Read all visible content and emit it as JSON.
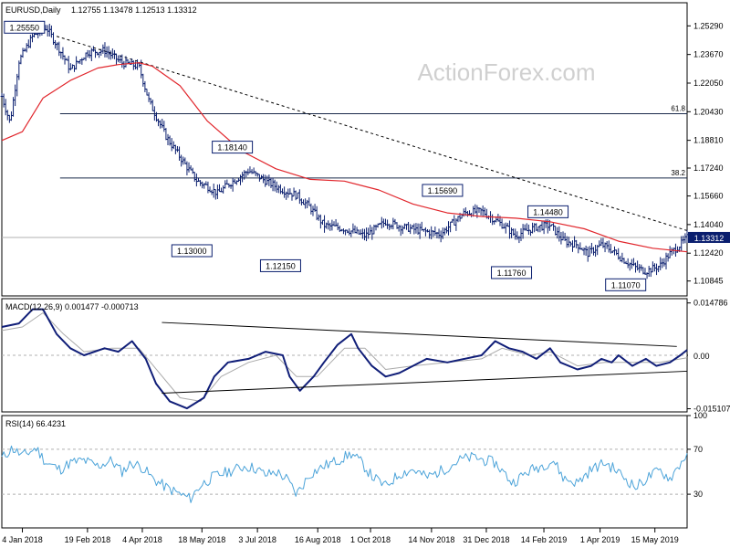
{
  "chart_data": [
    {
      "panel": "price",
      "type": "ohlc",
      "title": "EURUSD,Daily",
      "ohlc_readout": "1.12755 1.13478 1.12513 1.13312",
      "watermark": "ActionForex.com",
      "ylim": [
        1.1,
        1.266
      ],
      "yticks": [
        "1.25290",
        "1.23670",
        "1.22050",
        "1.20430",
        "1.18810",
        "1.17240",
        "1.15660",
        "1.14040",
        "1.12420",
        "1.10845"
      ],
      "current_price": "1.13312",
      "fib_levels": [
        {
          "label": "61.8",
          "value": 1.2032
        },
        {
          "label": "38.2",
          "value": 1.1668
        }
      ],
      "swing_labels": [
        {
          "text": "1.25550",
          "t": 0.065,
          "value": 1.2555
        },
        {
          "text": "1.13000",
          "t": 0.312,
          "value": 1.13
        },
        {
          "text": "1.18140",
          "t": 0.363,
          "value": 1.1814
        },
        {
          "text": "1.12150",
          "t": 0.452,
          "value": 1.1215
        },
        {
          "text": "1.15690",
          "t": 0.675,
          "value": 1.1569
        },
        {
          "text": "1.11760",
          "t": 0.773,
          "value": 1.1176
        },
        {
          "text": "1.14480",
          "t": 0.805,
          "value": 1.1448
        },
        {
          "text": "1.11070",
          "t": 0.937,
          "value": 1.1107
        }
      ],
      "close_path": [
        [
          0.0,
          1.213
        ],
        [
          0.012,
          1.198
        ],
        [
          0.025,
          1.233
        ],
        [
          0.045,
          1.247
        ],
        [
          0.065,
          1.252
        ],
        [
          0.085,
          1.239
        ],
        [
          0.1,
          1.228
        ],
        [
          0.125,
          1.238
        ],
        [
          0.15,
          1.239
        ],
        [
          0.175,
          1.232
        ],
        [
          0.2,
          1.23
        ],
        [
          0.215,
          1.21
        ],
        [
          0.24,
          1.19
        ],
        [
          0.27,
          1.173
        ],
        [
          0.285,
          1.165
        ],
        [
          0.3,
          1.162
        ],
        [
          0.315,
          1.158
        ],
        [
          0.33,
          1.163
        ],
        [
          0.345,
          1.167
        ],
        [
          0.36,
          1.171
        ],
        [
          0.385,
          1.165
        ],
        [
          0.41,
          1.16
        ],
        [
          0.43,
          1.157
        ],
        [
          0.45,
          1.15
        ],
        [
          0.47,
          1.14
        ],
        [
          0.5,
          1.138
        ],
        [
          0.53,
          1.134
        ],
        [
          0.56,
          1.142
        ],
        [
          0.585,
          1.139
        ],
        [
          0.61,
          1.137
        ],
        [
          0.64,
          1.135
        ],
        [
          0.66,
          1.142
        ],
        [
          0.675,
          1.147
        ],
        [
          0.7,
          1.148
        ],
        [
          0.72,
          1.143
        ],
        [
          0.735,
          1.139
        ],
        [
          0.75,
          1.134
        ],
        [
          0.76,
          1.136
        ],
        [
          0.78,
          1.139
        ],
        [
          0.8,
          1.14
        ],
        [
          0.82,
          1.131
        ],
        [
          0.84,
          1.129
        ],
        [
          0.855,
          1.124
        ],
        [
          0.875,
          1.129
        ],
        [
          0.89,
          1.126
        ],
        [
          0.905,
          1.121
        ],
        [
          0.925,
          1.116
        ],
        [
          0.94,
          1.114
        ],
        [
          0.96,
          1.117
        ],
        [
          0.975,
          1.124
        ],
        [
          0.99,
          1.129
        ],
        [
          1.0,
          1.133
        ]
      ],
      "ma_path": [
        [
          0.0,
          1.188
        ],
        [
          0.03,
          1.193
        ],
        [
          0.06,
          1.212
        ],
        [
          0.1,
          1.222
        ],
        [
          0.14,
          1.229
        ],
        [
          0.17,
          1.231
        ],
        [
          0.2,
          1.232
        ],
        [
          0.22,
          1.23
        ],
        [
          0.26,
          1.219
        ],
        [
          0.3,
          1.199
        ],
        [
          0.35,
          1.182
        ],
        [
          0.4,
          1.172
        ],
        [
          0.45,
          1.166
        ],
        [
          0.5,
          1.165
        ],
        [
          0.55,
          1.16
        ],
        [
          0.6,
          1.152
        ],
        [
          0.65,
          1.147
        ],
        [
          0.7,
          1.145
        ],
        [
          0.75,
          1.144
        ],
        [
          0.8,
          1.142
        ],
        [
          0.85,
          1.138
        ],
        [
          0.9,
          1.131
        ],
        [
          0.95,
          1.127
        ],
        [
          1.0,
          1.125
        ]
      ],
      "trendline": {
        "from": [
          0.08,
          1.247
        ],
        "to": [
          1.0,
          1.137
        ]
      }
    },
    {
      "panel": "macd",
      "type": "line",
      "title": "MACD(12,26,9) 0.001477 -0.000713",
      "ylim": [
        -0.016,
        0.016
      ],
      "yticks": [
        "0.014786",
        "0.00",
        "-0.015107"
      ],
      "current_label": "0.00",
      "macd_path": [
        [
          0.0,
          0.008
        ],
        [
          0.025,
          0.009
        ],
        [
          0.045,
          0.013
        ],
        [
          0.06,
          0.013
        ],
        [
          0.08,
          0.006
        ],
        [
          0.1,
          0.002
        ],
        [
          0.12,
          0.0
        ],
        [
          0.15,
          0.002
        ],
        [
          0.17,
          0.001
        ],
        [
          0.19,
          0.004
        ],
        [
          0.21,
          -0.001
        ],
        [
          0.225,
          -0.008
        ],
        [
          0.245,
          -0.013
        ],
        [
          0.27,
          -0.015
        ],
        [
          0.295,
          -0.012
        ],
        [
          0.31,
          -0.006
        ],
        [
          0.33,
          -0.002
        ],
        [
          0.36,
          -0.001
        ],
        [
          0.385,
          0.001
        ],
        [
          0.41,
          0.0
        ],
        [
          0.42,
          -0.006
        ],
        [
          0.435,
          -0.01
        ],
        [
          0.455,
          -0.006
        ],
        [
          0.47,
          -0.002
        ],
        [
          0.49,
          0.003
        ],
        [
          0.51,
          0.006
        ],
        [
          0.52,
          0.002
        ],
        [
          0.54,
          -0.003
        ],
        [
          0.56,
          -0.006
        ],
        [
          0.58,
          -0.005
        ],
        [
          0.6,
          -0.003
        ],
        [
          0.62,
          -0.001
        ],
        [
          0.65,
          -0.002
        ],
        [
          0.7,
          0.0
        ],
        [
          0.72,
          0.004
        ],
        [
          0.74,
          0.002
        ],
        [
          0.76,
          0.001
        ],
        [
          0.78,
          -0.001
        ],
        [
          0.8,
          0.002
        ],
        [
          0.815,
          -0.002
        ],
        [
          0.84,
          -0.004
        ],
        [
          0.86,
          -0.003
        ],
        [
          0.875,
          -0.001
        ],
        [
          0.89,
          -0.002
        ],
        [
          0.9,
          0.0
        ],
        [
          0.92,
          -0.003
        ],
        [
          0.94,
          -0.001
        ],
        [
          0.955,
          -0.003
        ],
        [
          0.975,
          -0.002
        ],
        [
          0.99,
          0.0
        ],
        [
          1.0,
          0.0015
        ]
      ],
      "signal_path": [
        [
          0.0,
          0.007
        ],
        [
          0.03,
          0.008
        ],
        [
          0.06,
          0.012
        ],
        [
          0.09,
          0.006
        ],
        [
          0.12,
          0.001
        ],
        [
          0.16,
          0.002
        ],
        [
          0.2,
          0.002
        ],
        [
          0.23,
          -0.005
        ],
        [
          0.26,
          -0.012
        ],
        [
          0.29,
          -0.013
        ],
        [
          0.32,
          -0.006
        ],
        [
          0.36,
          -0.002
        ],
        [
          0.4,
          0.0
        ],
        [
          0.43,
          -0.006
        ],
        [
          0.46,
          -0.006
        ],
        [
          0.5,
          0.002
        ],
        [
          0.53,
          0.002
        ],
        [
          0.56,
          -0.004
        ],
        [
          0.6,
          -0.003
        ],
        [
          0.65,
          -0.002
        ],
        [
          0.7,
          -0.001
        ],
        [
          0.73,
          0.002
        ],
        [
          0.77,
          0.0
        ],
        [
          0.8,
          0.001
        ],
        [
          0.84,
          -0.003
        ],
        [
          0.88,
          -0.002
        ],
        [
          0.92,
          -0.002
        ],
        [
          0.96,
          -0.002
        ],
        [
          1.0,
          -0.0007
        ]
      ],
      "trendlines": [
        {
          "from": [
            0.42,
            0.0085
          ],
          "to": [
            0.985,
            0.0025
          ]
        },
        {
          "from": [
            0.42,
            -0.0107
          ],
          "to": [
            1.0,
            -0.0045
          ]
        }
      ]
    },
    {
      "panel": "rsi",
      "type": "line",
      "title": "RSI(14) 66.4231",
      "ylim": [
        0,
        100
      ],
      "yticks": [
        "100",
        "70",
        "30",
        "0"
      ],
      "levels": [
        70,
        30
      ],
      "rsi_path": [
        [
          0.0,
          62
        ],
        [
          0.015,
          71
        ],
        [
          0.03,
          64
        ],
        [
          0.05,
          71
        ],
        [
          0.065,
          58
        ],
        [
          0.085,
          52
        ],
        [
          0.1,
          58
        ],
        [
          0.12,
          60
        ],
        [
          0.14,
          55
        ],
        [
          0.16,
          60
        ],
        [
          0.175,
          50
        ],
        [
          0.19,
          58
        ],
        [
          0.205,
          54
        ],
        [
          0.22,
          44
        ],
        [
          0.24,
          36
        ],
        [
          0.26,
          30
        ],
        [
          0.275,
          26
        ],
        [
          0.29,
          38
        ],
        [
          0.31,
          46
        ],
        [
          0.33,
          50
        ],
        [
          0.355,
          55
        ],
        [
          0.37,
          53
        ],
        [
          0.385,
          47
        ],
        [
          0.4,
          50
        ],
        [
          0.415,
          44
        ],
        [
          0.43,
          30
        ],
        [
          0.45,
          48
        ],
        [
          0.47,
          55
        ],
        [
          0.49,
          60
        ],
        [
          0.51,
          66
        ],
        [
          0.525,
          58
        ],
        [
          0.54,
          46
        ],
        [
          0.56,
          37
        ],
        [
          0.58,
          48
        ],
        [
          0.6,
          52
        ],
        [
          0.62,
          45
        ],
        [
          0.645,
          52
        ],
        [
          0.67,
          61
        ],
        [
          0.69,
          63
        ],
        [
          0.705,
          60
        ],
        [
          0.72,
          58
        ],
        [
          0.745,
          40
        ],
        [
          0.77,
          51
        ],
        [
          0.79,
          56
        ],
        [
          0.805,
          60
        ],
        [
          0.82,
          44
        ],
        [
          0.84,
          40
        ],
        [
          0.86,
          52
        ],
        [
          0.88,
          58
        ],
        [
          0.895,
          52
        ],
        [
          0.91,
          44
        ],
        [
          0.925,
          36
        ],
        [
          0.945,
          46
        ],
        [
          0.96,
          51
        ],
        [
          0.975,
          44
        ],
        [
          0.99,
          57
        ],
        [
          1.0,
          66.4
        ]
      ]
    }
  ],
  "x_axis": {
    "labels": [
      "4 Jan 2018",
      "19 Feb 2018",
      "4 Apr 2018",
      "18 May 2018",
      "3 Jul 2018",
      "16 Aug 2018",
      "1 Oct 2018",
      "14 Nov 2018",
      "31 Dec 2018",
      "14 Feb 2019",
      "1 Apr 2019",
      "15 May 2019"
    ],
    "label_positions": [
      0.03,
      0.125,
      0.205,
      0.292,
      0.373,
      0.461,
      0.538,
      0.627,
      0.707,
      0.791,
      0.873,
      0.953
    ]
  },
  "colors": {
    "price": "#0a1e6e",
    "ma": "#e1262c",
    "macd": "#101e78",
    "signal": "#aaaaaa",
    "rsi": "#4ba3d9",
    "grid_dash": "#b0b0b0",
    "label_border": "#0a1e6e",
    "current_box": "#0a1e6e",
    "watermark": "#d0d0d0"
  }
}
